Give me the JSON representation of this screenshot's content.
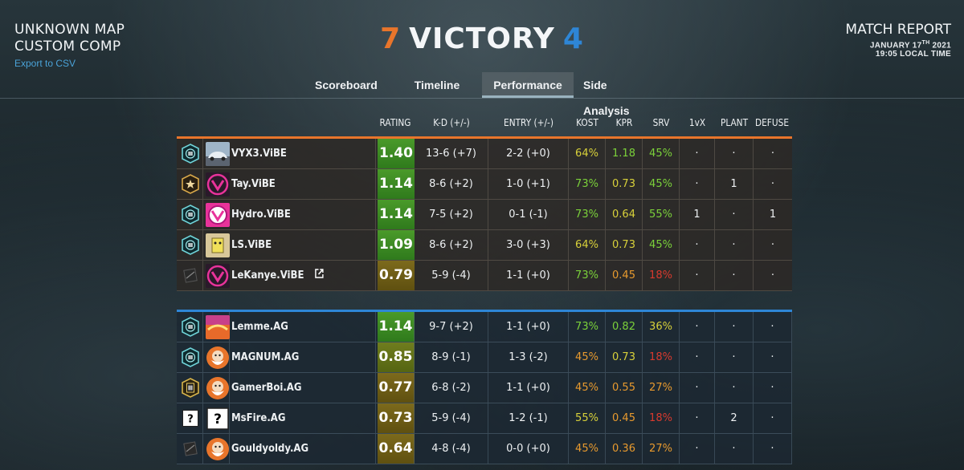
{
  "header": {
    "map_name": "UNKNOWN MAP",
    "mode": "CUSTOM COMP",
    "export_label": "Export to CSV",
    "score_left": "7",
    "result": "VICTORY",
    "score_right": "4",
    "report_title": "MATCH REPORT",
    "report_date_prefix": "JANUARY 17",
    "report_date_sup": "TH",
    "report_date_year": " 2021",
    "report_time": "19:05 LOCAL TIME"
  },
  "tabs": [
    {
      "label": "Scoreboard"
    },
    {
      "label": "Timeline"
    },
    {
      "label": "Performance",
      "active": true
    },
    {
      "label": "Side Analysis"
    }
  ],
  "columns": {
    "rating": "RATING",
    "kd": "K-D (+/-)",
    "entry": "ENTRY (+/-)",
    "kost": "KOST",
    "kpr": "KPR",
    "srv": "SRV",
    "vx": "1vX",
    "plant": "PLANT",
    "defuse": "DEFUSE"
  },
  "colors": {
    "orange_team": "#e8752b",
    "blue_team": "#2e86d6",
    "rating_high": "#3f8a2a",
    "rating_mid": "#6b7a1e",
    "rating_low": "#7a6a1e"
  },
  "teams": [
    {
      "side": "orange",
      "players": [
        {
          "name": "VYX3.ViBE",
          "rank": "diamond",
          "avatar": "car",
          "rating": "1.40",
          "rating_tier": "high",
          "kd": "13-6 (+7)",
          "entry": "2-2 (+0)",
          "kost": "64%",
          "kost_c": "y",
          "kpr": "1.18",
          "kpr_c": "g",
          "srv": "45%",
          "srv_c": "g",
          "vx": "·",
          "plant": "·",
          "defuse": "·"
        },
        {
          "name": "Tay.ViBE",
          "rank": "champion",
          "avatar": "vibe",
          "rating": "1.14",
          "rating_tier": "high",
          "kd": "8-6 (+2)",
          "entry": "1-0 (+1)",
          "kost": "73%",
          "kost_c": "g",
          "kpr": "0.73",
          "kpr_c": "y",
          "srv": "45%",
          "srv_c": "g",
          "vx": "·",
          "plant": "1",
          "defuse": "·"
        },
        {
          "name": "Hydro.ViBE",
          "rank": "diamond",
          "avatar": "hydro",
          "rating": "1.14",
          "rating_tier": "high",
          "kd": "7-5 (+2)",
          "entry": "0-1 (-1)",
          "kost": "73%",
          "kost_c": "g",
          "kpr": "0.64",
          "kpr_c": "y",
          "srv": "55%",
          "srv_c": "g",
          "vx": "1",
          "plant": "·",
          "defuse": "1"
        },
        {
          "name": "LS.ViBE",
          "rank": "diamond",
          "avatar": "ls",
          "rating": "1.09",
          "rating_tier": "high",
          "kd": "8-6 (+2)",
          "entry": "3-0 (+3)",
          "kost": "64%",
          "kost_c": "y",
          "kpr": "0.73",
          "kpr_c": "y",
          "srv": "45%",
          "srv_c": "g",
          "vx": "·",
          "plant": "·",
          "defuse": "·"
        },
        {
          "name": "LeKanye.ViBE",
          "rank": "copper",
          "avatar": "vibe",
          "external": true,
          "rating": "0.79",
          "rating_tier": "low",
          "kd": "5-9 (-4)",
          "entry": "1-1 (+0)",
          "kost": "73%",
          "kost_c": "g",
          "kpr": "0.45",
          "kpr_c": "o",
          "srv": "18%",
          "srv_c": "r",
          "vx": "·",
          "plant": "·",
          "defuse": "·"
        }
      ]
    },
    {
      "side": "blue",
      "players": [
        {
          "name": "Lemme.AG",
          "rank": "diamond",
          "avatar": "lemme",
          "rating": "1.14",
          "rating_tier": "high",
          "kd": "9-7 (+2)",
          "entry": "1-1 (+0)",
          "kost": "73%",
          "kost_c": "g",
          "kpr": "0.82",
          "kpr_c": "g",
          "srv": "36%",
          "srv_c": "y",
          "vx": "·",
          "plant": "·",
          "defuse": "·"
        },
        {
          "name": "MAGNUM.AG",
          "rank": "diamond",
          "avatar": "ag",
          "rating": "0.85",
          "rating_tier": "mid",
          "kd": "8-9 (-1)",
          "entry": "1-3 (-2)",
          "kost": "45%",
          "kost_c": "o",
          "kpr": "0.73",
          "kpr_c": "y",
          "srv": "18%",
          "srv_c": "r",
          "vx": "·",
          "plant": "·",
          "defuse": "·"
        },
        {
          "name": "GamerBoi.AG",
          "rank": "gold",
          "avatar": "ag",
          "rating": "0.77",
          "rating_tier": "low",
          "kd": "6-8 (-2)",
          "entry": "1-1 (+0)",
          "kost": "45%",
          "kost_c": "o",
          "kpr": "0.55",
          "kpr_c": "o",
          "srv": "27%",
          "srv_c": "o",
          "vx": "·",
          "plant": "·",
          "defuse": "·"
        },
        {
          "name": "MsFire.AG",
          "rank": "unknown",
          "avatar": "unknown",
          "rating": "0.73",
          "rating_tier": "low",
          "kd": "5-9 (-4)",
          "entry": "1-2 (-1)",
          "kost": "55%",
          "kost_c": "y",
          "kpr": "0.45",
          "kpr_c": "o",
          "srv": "18%",
          "srv_c": "r",
          "vx": "·",
          "plant": "2",
          "defuse": "·"
        },
        {
          "name": "Gouldyoldy.AG",
          "rank": "copper",
          "avatar": "ag",
          "rating": "0.64",
          "rating_tier": "low",
          "kd": "4-8 (-4)",
          "entry": "0-0 (+0)",
          "kost": "45%",
          "kost_c": "o",
          "kpr": "0.36",
          "kpr_c": "o",
          "srv": "27%",
          "srv_c": "o",
          "vx": "·",
          "plant": "·",
          "defuse": "·"
        }
      ]
    }
  ]
}
